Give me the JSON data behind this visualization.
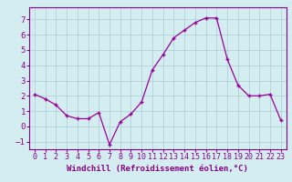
{
  "x": [
    0,
    1,
    2,
    3,
    4,
    5,
    6,
    7,
    8,
    9,
    10,
    11,
    12,
    13,
    14,
    15,
    16,
    17,
    18,
    19,
    20,
    21,
    22,
    23
  ],
  "y": [
    2.1,
    1.8,
    1.4,
    0.7,
    0.5,
    0.5,
    0.9,
    -1.2,
    0.3,
    0.8,
    1.6,
    3.7,
    4.7,
    5.8,
    6.3,
    6.8,
    7.1,
    7.1,
    4.4,
    2.7,
    2.0,
    2.0,
    2.1,
    0.4
  ],
  "line_color": "#990099",
  "marker": "+",
  "markersize": 3.5,
  "linewidth": 0.9,
  "markeredgewidth": 1.0,
  "xlabel": "Windchill (Refroidissement éolien,°C)",
  "xlabel_fontsize": 6.5,
  "bg_color": "#d4edf0",
  "grid_color": "#aacdd4",
  "tick_color": "#880088",
  "label_color": "#880088",
  "ylim": [
    -1.5,
    7.8
  ],
  "xlim": [
    -0.5,
    23.5
  ],
  "yticks": [
    -1,
    0,
    1,
    2,
    3,
    4,
    5,
    6,
    7
  ],
  "xticks": [
    0,
    1,
    2,
    3,
    4,
    5,
    6,
    7,
    8,
    9,
    10,
    11,
    12,
    13,
    14,
    15,
    16,
    17,
    18,
    19,
    20,
    21,
    22,
    23
  ],
  "tick_fontsize": 6,
  "ytick_fontsize": 6.5
}
